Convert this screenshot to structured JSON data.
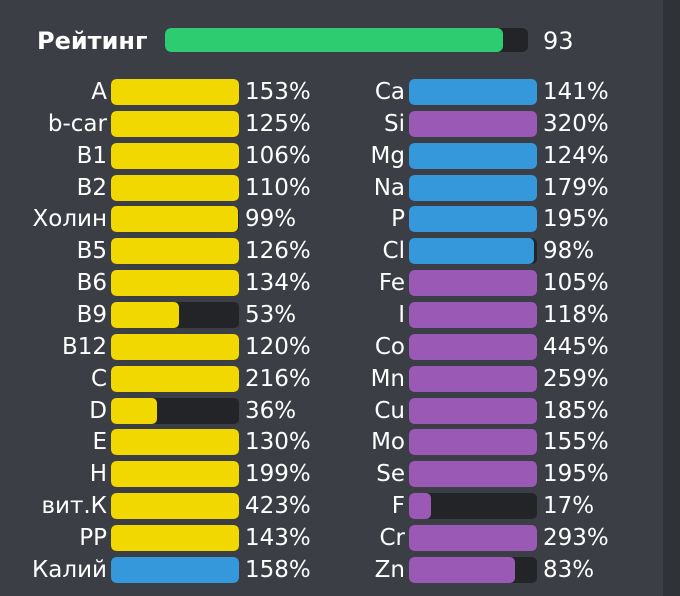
{
  "rating": {
    "label": "Рейтинг",
    "value": "93",
    "fill": 0.93,
    "color": "#2ecc71"
  },
  "colors": {
    "yellow": "#f0d800",
    "blue": "#3498db",
    "purple": "#9b59b6",
    "track": "#222428"
  },
  "left_items": [
    {
      "label": "A",
      "pct": "153%",
      "fill": 1.0,
      "color": "yellow"
    },
    {
      "label": "b-car",
      "pct": "125%",
      "fill": 1.0,
      "color": "yellow"
    },
    {
      "label": "B1",
      "pct": "106%",
      "fill": 1.0,
      "color": "yellow"
    },
    {
      "label": "B2",
      "pct": "110%",
      "fill": 1.0,
      "color": "yellow"
    },
    {
      "label": "Холин",
      "pct": "99%",
      "fill": 0.99,
      "color": "yellow"
    },
    {
      "label": "B5",
      "pct": "126%",
      "fill": 1.0,
      "color": "yellow"
    },
    {
      "label": "B6",
      "pct": "134%",
      "fill": 1.0,
      "color": "yellow"
    },
    {
      "label": "B9",
      "pct": "53%",
      "fill": 0.53,
      "color": "yellow"
    },
    {
      "label": "B12",
      "pct": "120%",
      "fill": 1.0,
      "color": "yellow"
    },
    {
      "label": "C",
      "pct": "216%",
      "fill": 1.0,
      "color": "yellow"
    },
    {
      "label": "D",
      "pct": "36%",
      "fill": 0.36,
      "color": "yellow"
    },
    {
      "label": "E",
      "pct": "130%",
      "fill": 1.0,
      "color": "yellow"
    },
    {
      "label": "H",
      "pct": "199%",
      "fill": 1.0,
      "color": "yellow"
    },
    {
      "label": "вит.К",
      "pct": "423%",
      "fill": 1.0,
      "color": "yellow"
    },
    {
      "label": "PP",
      "pct": "143%",
      "fill": 1.0,
      "color": "yellow"
    },
    {
      "label": "Калий",
      "pct": "158%",
      "fill": 1.0,
      "color": "blue"
    }
  ],
  "right_items": [
    {
      "label": "Ca",
      "pct": "141%",
      "fill": 1.0,
      "color": "blue"
    },
    {
      "label": "Si",
      "pct": "320%",
      "fill": 1.0,
      "color": "purple"
    },
    {
      "label": "Mg",
      "pct": "124%",
      "fill": 1.0,
      "color": "blue"
    },
    {
      "label": "Na",
      "pct": "179%",
      "fill": 1.0,
      "color": "blue"
    },
    {
      "label": "P",
      "pct": "195%",
      "fill": 1.0,
      "color": "blue"
    },
    {
      "label": "Cl",
      "pct": "98%",
      "fill": 0.98,
      "color": "blue"
    },
    {
      "label": "Fe",
      "pct": "105%",
      "fill": 1.0,
      "color": "purple"
    },
    {
      "label": "I",
      "pct": "118%",
      "fill": 1.0,
      "color": "purple"
    },
    {
      "label": "Co",
      "pct": "445%",
      "fill": 1.0,
      "color": "purple"
    },
    {
      "label": "Mn",
      "pct": "259%",
      "fill": 1.0,
      "color": "purple"
    },
    {
      "label": "Cu",
      "pct": "185%",
      "fill": 1.0,
      "color": "purple"
    },
    {
      "label": "Mo",
      "pct": "155%",
      "fill": 1.0,
      "color": "purple"
    },
    {
      "label": "Se",
      "pct": "195%",
      "fill": 1.0,
      "color": "purple"
    },
    {
      "label": "F",
      "pct": "17%",
      "fill": 0.17,
      "color": "purple"
    },
    {
      "label": "Cr",
      "pct": "293%",
      "fill": 1.0,
      "color": "purple"
    },
    {
      "label": "Zn",
      "pct": "83%",
      "fill": 0.83,
      "color": "purple"
    }
  ]
}
